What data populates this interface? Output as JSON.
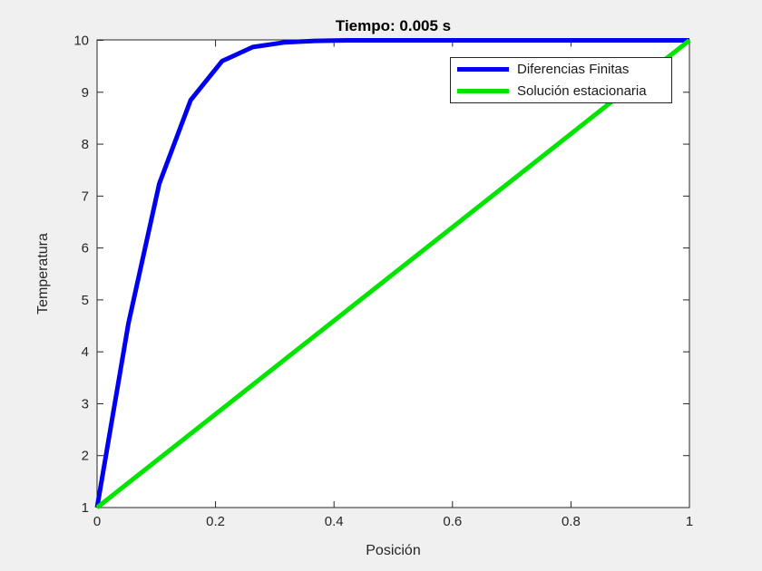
{
  "figure": {
    "background": "#f0f0f0"
  },
  "chart_data": {
    "type": "line",
    "title": "Tiempo: 0.005 s",
    "xlabel": "Posición",
    "ylabel": "Temperatura",
    "xlim": [
      0,
      1
    ],
    "ylim": [
      1,
      10
    ],
    "xticks": [
      0,
      0.2,
      0.4,
      0.6,
      0.8,
      1
    ],
    "xtick_labels": [
      "0",
      "0.2",
      "0.4",
      "0.6",
      "0.8",
      "1"
    ],
    "yticks": [
      1,
      2,
      3,
      4,
      5,
      6,
      7,
      8,
      9,
      10
    ],
    "ytick_labels": [
      "1",
      "2",
      "3",
      "4",
      "5",
      "6",
      "7",
      "8",
      "9",
      "10"
    ],
    "grid": false,
    "legend": {
      "position": "top-right",
      "border": true
    },
    "colors": {
      "figure_background": "#f0f0f0",
      "plot_background": "#ffffff",
      "axis": "#262626",
      "title_text": "#000000",
      "tick_text": "#262626",
      "series_blue": "#0000ee",
      "series_green": "#00e400"
    },
    "series": [
      {
        "name": "Diferencias Finitas",
        "slug": "finite-differences-line",
        "color": "#0000ee",
        "x": [
          0,
          0.053,
          0.105,
          0.158,
          0.211,
          0.263,
          0.316,
          0.368,
          0.421,
          0.474,
          0.526,
          0.579,
          0.632,
          0.684,
          0.737,
          0.789,
          0.842,
          0.895,
          0.947,
          1
        ],
        "y": [
          1,
          4.55,
          7.24,
          8.85,
          9.6,
          9.87,
          9.96,
          9.99,
          10,
          10,
          10,
          10,
          10,
          10,
          10,
          10,
          10,
          10,
          10,
          10
        ]
      },
      {
        "name": "Solución estacionaria",
        "slug": "steady-state-line",
        "color": "#00e400",
        "x": [
          0,
          1
        ],
        "y": [
          1,
          10
        ]
      }
    ]
  }
}
